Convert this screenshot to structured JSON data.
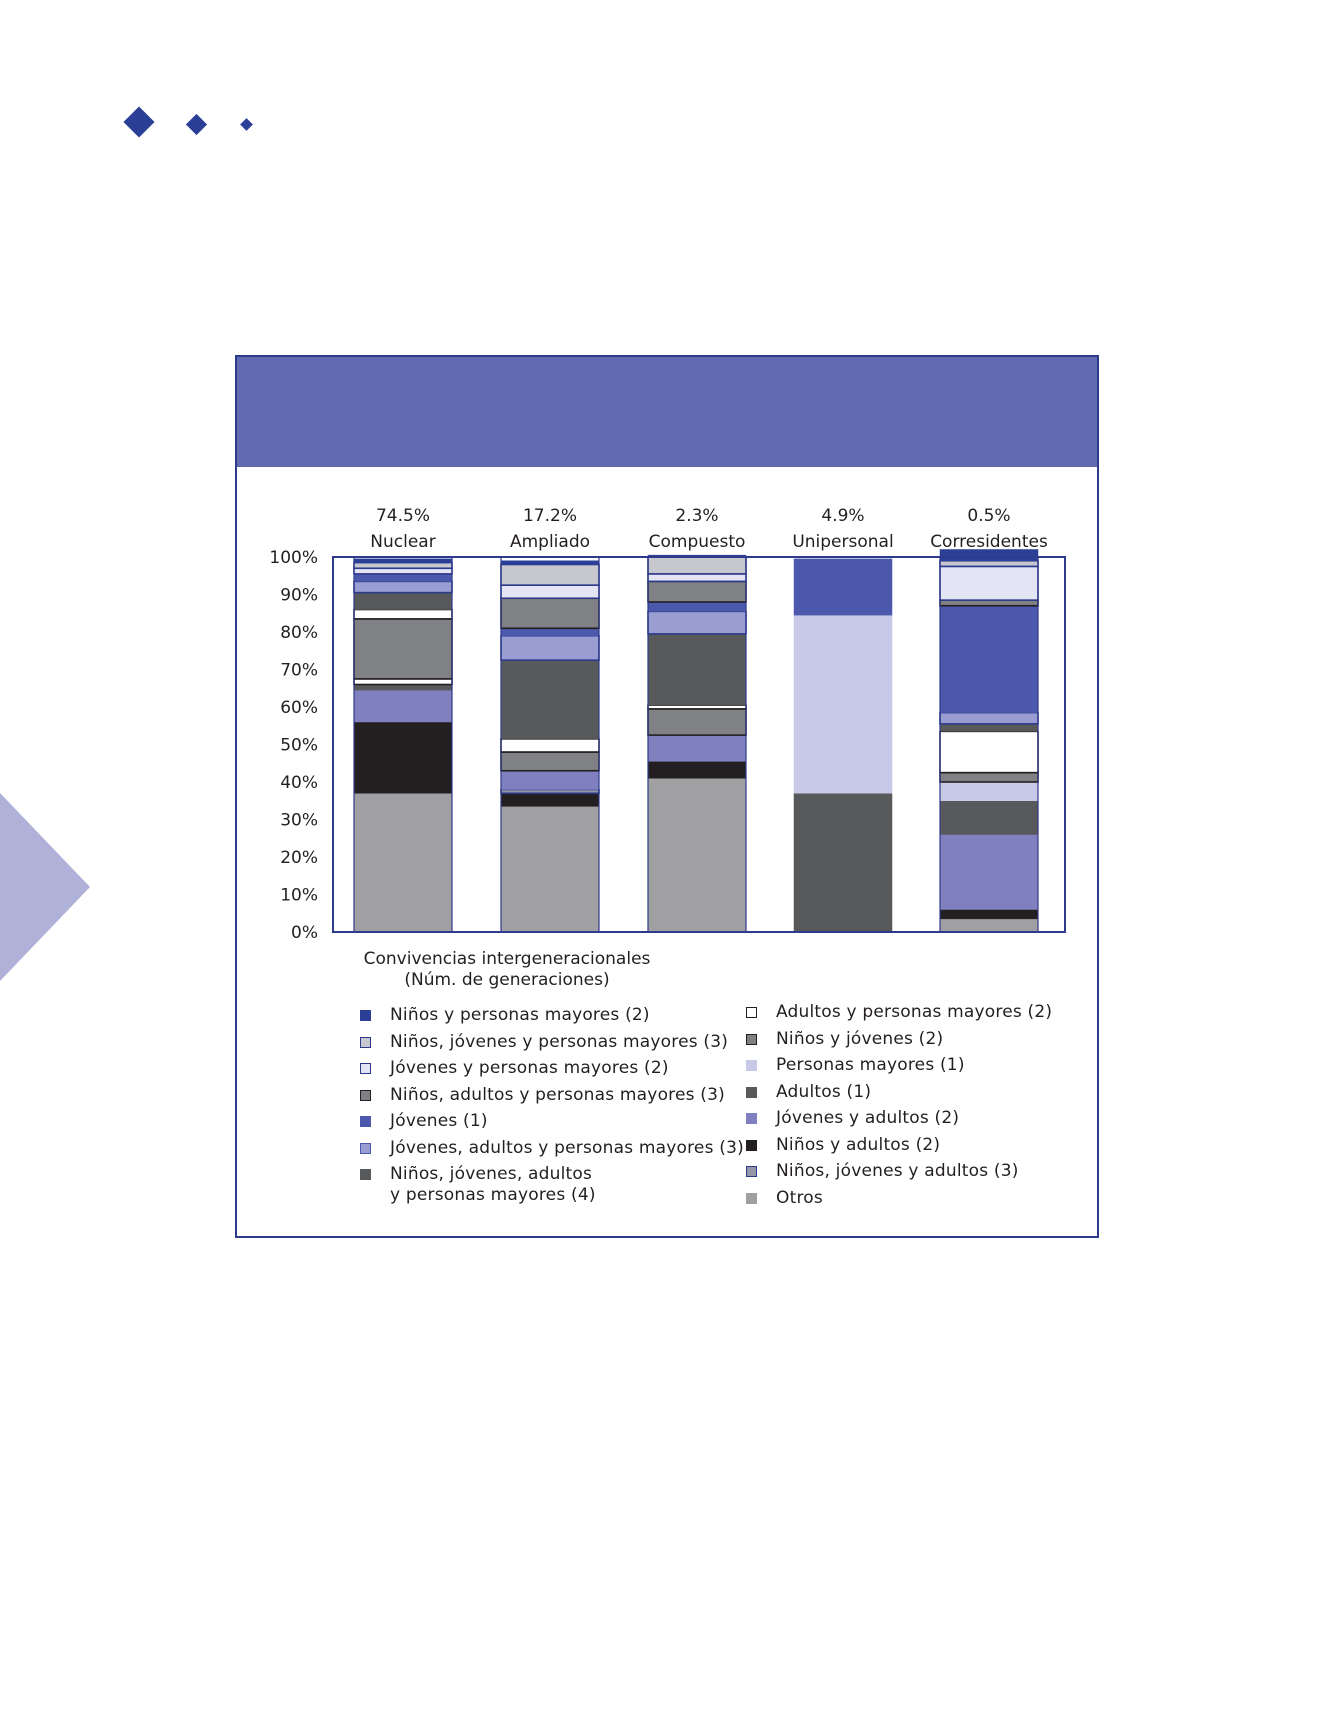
{
  "colors": {
    "accent": "#2b3f97",
    "header_band": "#626ab1",
    "frame": "#2e3a8c",
    "triangle": "#afb1d9"
  },
  "chart_data": {
    "type": "bar",
    "stacked": true,
    "categories": [
      "Nuclear",
      "Ampliado",
      "Compuesto",
      "Unipersonal",
      "Corresidentes"
    ],
    "category_shares": [
      "74.5%",
      "17.2%",
      "2.3%",
      "4.9%",
      "0.5%"
    ],
    "xlabel": "Convivencias intergeneracionales",
    "xlabel_sub": "(Núm. de generaciones)",
    "ylim": [
      0,
      100
    ],
    "y_ticks": [
      "0%",
      "10%",
      "20%",
      "30%",
      "40%",
      "50%",
      "60%",
      "70%",
      "80%",
      "90%",
      "100%"
    ],
    "grid": false,
    "series": [
      {
        "name": "Otros",
        "color": "#a0a0a3",
        "style": "solid",
        "values": [
          37,
          33.5,
          41,
          0,
          3.5
        ]
      },
      {
        "name": "Niños y adultos (2)",
        "color": "#231f20",
        "style": "solid",
        "values": [
          19,
          3.5,
          4.5,
          0,
          2.5
        ]
      },
      {
        "name": "Niños, jóvenes y adultos (3)",
        "color": "#9497a8",
        "style": "outlined",
        "values": [
          0,
          1,
          0,
          0,
          0
        ]
      },
      {
        "name": "Jóvenes y adultos (2)",
        "color": "#8080be",
        "style": "solid",
        "values": [
          8.5,
          5,
          7,
          0,
          20
        ]
      },
      {
        "name": "Niños, jóvenes, adultos y personas mayores (4)",
        "color": "#58595b",
        "style": "solid",
        "values": [
          0,
          0,
          0,
          0,
          9
        ]
      },
      {
        "name": "Adultos (1)",
        "color": "#58595b",
        "style": "solid",
        "values": [
          1.5,
          0,
          0,
          37,
          0
        ]
      },
      {
        "name": "Personas mayores (1)",
        "color": "#c8c9e6",
        "style": "solid",
        "values": [
          0,
          0,
          0,
          47.5,
          5
        ]
      },
      {
        "name": "Niños y jóvenes (2)",
        "color": "#808184",
        "style": "outlined",
        "values": [
          0,
          5,
          7,
          0,
          2.5
        ]
      },
      {
        "name": "Adultos y personas mayores (2)",
        "color": "#ffffff",
        "style": "outlined",
        "values": [
          1.5,
          3.5,
          1,
          0,
          11
        ]
      },
      {
        "name": "Niños, jóvenes, adultos y personas mayores (4)",
        "color": "#58595b",
        "style": "solid",
        "values": [
          0,
          21,
          19,
          0,
          2
        ]
      },
      {
        "name": "Niños y jóvenes (2)",
        "color": "#808184",
        "style": "outlined",
        "values": [
          16,
          0,
          0,
          0,
          0
        ]
      },
      {
        "name": "Adultos y personas mayores (2)",
        "color": "#ffffff",
        "style": "outlined",
        "values": [
          2.5,
          0,
          0,
          0,
          0
        ]
      },
      {
        "name": "Jóvenes, adultos y personas mayores (3)",
        "color": "#9a9dd2",
        "style": "outlined",
        "values": [
          0,
          6.5,
          6,
          0,
          3
        ]
      },
      {
        "name": "Jóvenes (1)",
        "color": "#4c58ab",
        "style": "solid",
        "values": [
          0,
          2,
          2.5,
          0,
          28.5
        ]
      },
      {
        "name": "Niños, adultos y personas mayores (3)",
        "color": "#58595b",
        "style": "solid",
        "values": [
          4.5,
          0,
          0,
          0,
          0
        ]
      },
      {
        "name": "Niños, adultos y personas mayores (3)",
        "color": "#808184",
        "style": "outlined",
        "values": [
          0,
          8,
          5.5,
          0,
          1.5
        ]
      },
      {
        "name": "Jóvenes, adultos y personas mayores (3)",
        "color": "#9a9dd2",
        "style": "outlined",
        "values": [
          3,
          0,
          0,
          0,
          0
        ]
      },
      {
        "name": "Jóvenes (1)",
        "color": "#4c58ab",
        "style": "solid",
        "values": [
          2,
          0,
          0,
          15,
          0
        ]
      },
      {
        "name": "Jóvenes y personas mayores (2)",
        "color": "#e3e4f4",
        "style": "outlined",
        "values": [
          1.5,
          3.5,
          2,
          0,
          9
        ]
      },
      {
        "name": "Niños, jóvenes y personas mayores (3)",
        "color": "#c6c8cd",
        "style": "outlined",
        "values": [
          1.5,
          5.5,
          4.5,
          0,
          1.5
        ]
      },
      {
        "name": "Niños y personas mayores (2)",
        "color": "#2b3f97",
        "style": "solid",
        "values": [
          1,
          1,
          0.5,
          0,
          3
        ]
      }
    ]
  },
  "legend": {
    "left": [
      {
        "label": "Niños y personas mayores (2)",
        "color": "#2b3f97",
        "border": "#2b3f97"
      },
      {
        "label": "Niños, jóvenes y personas mayores (3)",
        "color": "#c6c8cd",
        "border": "#2e3a8c"
      },
      {
        "label": "Jóvenes y personas mayores (2)",
        "color": "#e3e4f4",
        "border": "#2e3a8c"
      },
      {
        "label": "Niños, adultos y personas mayores (3)",
        "color": "#808184",
        "border": "#231f20"
      },
      {
        "label": "Jóvenes (1)",
        "color": "#4c58ab",
        "border": "#4c58ab"
      },
      {
        "label": "Jóvenes, adultos y personas mayores (3)",
        "color": "#9a9dd2",
        "border": "#4c58ab"
      },
      {
        "label": "Niños, jóvenes, adultos",
        "label2": "y personas mayores (4)",
        "color": "#58595b",
        "border": "#58595b"
      }
    ],
    "right": [
      {
        "label": "Adultos y personas mayores (2)",
        "color": "#ffffff",
        "border": "#231f20"
      },
      {
        "label": "Niños y jóvenes (2)",
        "color": "#808184",
        "border": "#231f20"
      },
      {
        "label": "Personas mayores (1)",
        "color": "#c8c9e6",
        "border": "#c8c9e6"
      },
      {
        "label": "Adultos (1)",
        "color": "#58595b",
        "border": "#58595b"
      },
      {
        "label": "Jóvenes y adultos (2)",
        "color": "#8080be",
        "border": "#8080be"
      },
      {
        "label": "Niños y adultos (2)",
        "color": "#231f20",
        "border": "#231f20"
      },
      {
        "label": "Niños, jóvenes y adultos (3)",
        "color": "#9497a8",
        "border": "#2e3a8c"
      },
      {
        "label": "Otros",
        "color": "#a0a0a3",
        "border": "#a0a0a3"
      }
    ]
  }
}
